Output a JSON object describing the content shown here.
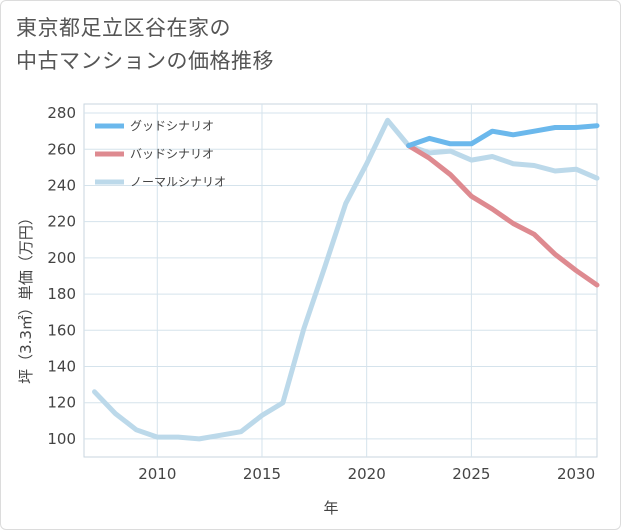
{
  "chart_data": {
    "type": "line",
    "title_line1": "東京都足立区谷在家の",
    "title_line2": "中古マンションの価格推移",
    "xlabel": "年",
    "ylabel": "坪（3.3㎡）単価（万円）",
    "xlim": [
      2006.5,
      2031
    ],
    "ylim": [
      90,
      285
    ],
    "x_ticks": [
      2010,
      2015,
      2020,
      2025,
      2030
    ],
    "y_ticks": [
      100,
      120,
      140,
      160,
      180,
      200,
      220,
      240,
      260,
      280
    ],
    "grid": true,
    "legend_position": "top-left",
    "series": [
      {
        "name": "グッドシナリオ",
        "color": "#6bb8ec",
        "x": [
          2022,
          2023,
          2024,
          2025,
          2026,
          2027,
          2028,
          2029,
          2030,
          2031
        ],
        "values": [
          262,
          266,
          263,
          263,
          270,
          268,
          270,
          272,
          272,
          273
        ]
      },
      {
        "name": "バッドシナリオ",
        "color": "#de8a90",
        "x": [
          2022,
          2023,
          2024,
          2025,
          2026,
          2027,
          2028,
          2029,
          2030,
          2031
        ],
        "values": [
          262,
          255,
          246,
          234,
          227,
          219,
          213,
          202,
          193,
          185
        ]
      },
      {
        "name": "ノーマルシナリオ",
        "color": "#bcd9ea",
        "x": [
          2007,
          2008,
          2009,
          2010,
          2011,
          2012,
          2013,
          2014,
          2015,
          2016,
          2017,
          2018,
          2019,
          2020,
          2021,
          2022,
          2023,
          2024,
          2025,
          2026,
          2027,
          2028,
          2029,
          2030,
          2031
        ],
        "values": [
          126,
          114,
          105,
          101,
          101,
          100,
          102,
          104,
          113,
          120,
          161,
          195,
          230,
          252,
          276,
          262,
          258,
          259,
          254,
          256,
          252,
          251,
          248,
          249,
          244
        ]
      }
    ]
  }
}
